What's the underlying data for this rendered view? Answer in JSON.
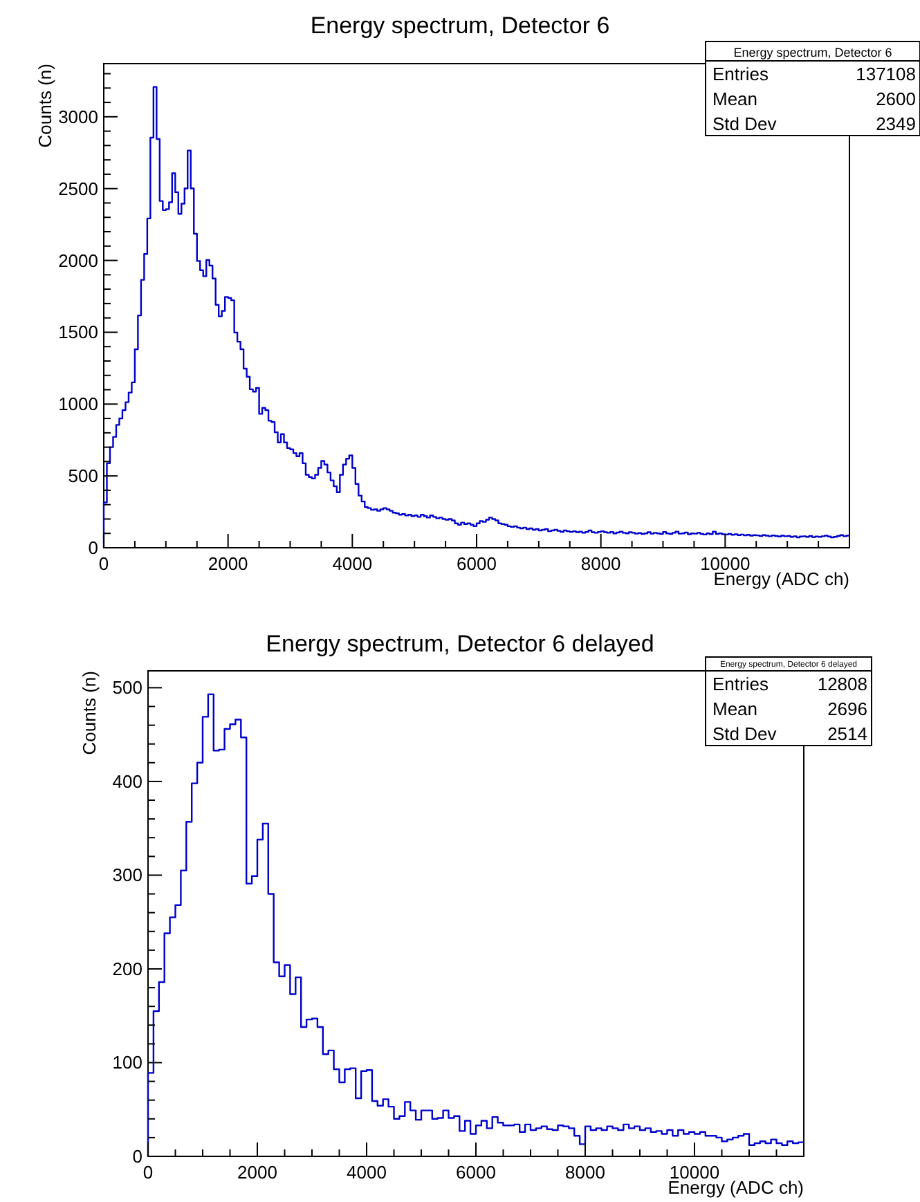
{
  "chart_data": [
    {
      "type": "histogram",
      "title": "Energy spectrum, Detector 6",
      "xlabel": "Energy (ADC ch)",
      "ylabel": "Counts (n)",
      "annotations": [
        "Energy spectrum, Detector 6",
        "Entries",
        "137108",
        "Mean",
        "2600",
        "Std Dev",
        "2349"
      ],
      "color": "#0000cc",
      "bins": [
        0,
        50,
        100,
        150,
        200,
        250,
        300,
        350,
        400,
        450,
        500,
        550,
        600,
        650,
        700,
        750,
        800,
        850,
        900,
        950,
        1000,
        1050,
        1100,
        1150,
        1200,
        1250,
        1300,
        1350,
        1400,
        1450,
        1500,
        1550,
        1600,
        1650,
        1700,
        1750,
        1800,
        1850,
        1900,
        1950,
        2000,
        2050,
        2100,
        2150,
        2200,
        2250,
        2300,
        2350,
        2400,
        2450,
        2500,
        2550,
        2600,
        2650,
        2700,
        2750,
        2800,
        2850,
        2900,
        2950,
        3000,
        3050,
        3100,
        3150,
        3200,
        3250,
        3300,
        3350,
        3400,
        3450,
        3500,
        3550,
        3600,
        3650,
        3700,
        3750,
        3800,
        3850,
        3900,
        3950,
        4000,
        4050,
        4100,
        4150,
        4200,
        4250,
        4300,
        4350,
        4400,
        4450,
        4500,
        4550,
        4600,
        4650,
        4700,
        4750,
        4800,
        4850,
        4900,
        4950,
        5000,
        5050,
        5100,
        5150,
        5200,
        5250,
        5300,
        5350,
        5400,
        5450,
        5500,
        5550,
        5600,
        5650,
        5700,
        5750,
        5800,
        5850,
        5900,
        5950,
        6000,
        6050,
        6100,
        6150,
        6200,
        6250,
        6300,
        6350,
        6400,
        6450,
        6500,
        6550,
        6600,
        6650,
        6700,
        6750,
        6800,
        6850,
        6900,
        6950,
        7000,
        7050,
        7100,
        7150,
        7200,
        7250,
        7300,
        7350,
        7400,
        7450,
        7500,
        7550,
        7600,
        7650,
        7700,
        7750,
        7800,
        7850,
        7900,
        7950,
        8000,
        8050,
        8100,
        8150,
        8200,
        8250,
        8300,
        8350,
        8400,
        8450,
        8500,
        8550,
        8600,
        8650,
        8700,
        8750,
        8800,
        8850,
        8900,
        8950,
        9000,
        9050,
        9100,
        9150,
        9200,
        9250,
        9300,
        9350,
        9400,
        9450,
        9500,
        9550,
        9600,
        9650,
        9700,
        9750,
        9800,
        9850,
        9900,
        9950,
        10000,
        10050,
        10100,
        10150,
        10200,
        10250,
        10300,
        10350,
        10400,
        10450,
        10500,
        10550,
        10600,
        10650,
        10700,
        10750,
        10800,
        10850,
        10900,
        10950,
        11000,
        11050,
        11100,
        11150,
        11200,
        11250,
        11300,
        11350,
        11400,
        11450,
        11500,
        11550,
        11600,
        11650,
        11700,
        11750,
        11800,
        11850,
        11900,
        11950,
        12000
      ],
      "values": [
        315,
        588,
        700,
        772,
        855,
        900,
        958,
        1013,
        1080,
        1151,
        1382,
        1617,
        1865,
        2045,
        2292,
        2855,
        3208,
        2845,
        2414,
        2350,
        2357,
        2405,
        2607,
        2475,
        2324,
        2395,
        2501,
        2765,
        2501,
        2186,
        1996,
        1932,
        1890,
        2003,
        1964,
        1874,
        1691,
        1611,
        1649,
        1746,
        1739,
        1723,
        1498,
        1434,
        1382,
        1247,
        1190,
        1103,
        1087,
        1112,
        932,
        974,
        958,
        884,
        875,
        804,
        733,
        791,
        733,
        694,
        685,
        659,
        637,
        659,
        588,
        508,
        492,
        482,
        508,
        556,
        604,
        579,
        524,
        469,
        428,
        386,
        508,
        579,
        620,
        643,
        556,
        444,
        363,
        322,
        283,
        276,
        264,
        267,
        257,
        267,
        276,
        267,
        257,
        244,
        240,
        230,
        235,
        225,
        230,
        220,
        225,
        215,
        230,
        220,
        210,
        225,
        215,
        205,
        210,
        200,
        195,
        200,
        190,
        170,
        160,
        175,
        165,
        170,
        160,
        150,
        170,
        185,
        180,
        195,
        210,
        200,
        190,
        170,
        165,
        160,
        150,
        145,
        150,
        140,
        135,
        140,
        130,
        135,
        125,
        130,
        120,
        125,
        130,
        115,
        120,
        125,
        118,
        110,
        120,
        115,
        110,
        115,
        108,
        112,
        105,
        110,
        120,
        108,
        104,
        110,
        115,
        108,
        104,
        110,
        100,
        106,
        112,
        104,
        100,
        108,
        104,
        98,
        102,
        96,
        100,
        108,
        98,
        104,
        100,
        96,
        110,
        100,
        96,
        104,
        112,
        98,
        100,
        106,
        94,
        100,
        98,
        104,
        96,
        92,
        100,
        95,
        112,
        96,
        100,
        94,
        92,
        96,
        90,
        94,
        88,
        92,
        86,
        90,
        84,
        88,
        86,
        82,
        88,
        84,
        80,
        86,
        82,
        78,
        84,
        80,
        82,
        76,
        80,
        72,
        78,
        80,
        76,
        82,
        74,
        78,
        76,
        80,
        84,
        78,
        72,
        76,
        82,
        88,
        80,
        84
      ],
      "xlim": [
        0,
        12000
      ],
      "xticks": [
        0,
        {
          "value": 500,
          "label": null
        },
        {
          "value": 1000,
          "label": null
        },
        {
          "value": 1500,
          "label": null
        },
        2000,
        {
          "value": 2500,
          "label": null
        },
        {
          "value": 3000,
          "label": null
        },
        {
          "value": 3500,
          "label": null
        },
        4000,
        {
          "value": 4500,
          "label": null
        },
        {
          "value": 5000,
          "label": null
        },
        {
          "value": 5500,
          "label": null
        },
        6000,
        {
          "value": 6500,
          "label": null
        },
        {
          "value": 7000,
          "label": null
        },
        {
          "value": 7500,
          "label": null
        },
        8000,
        {
          "value": 8500,
          "label": null
        },
        {
          "value": 9000,
          "label": null
        },
        {
          "value": 9500,
          "label": null
        },
        10000,
        {
          "value": 10500,
          "label": null
        },
        {
          "value": 11000,
          "label": null
        },
        {
          "value": 11500,
          "label": null
        }
      ],
      "ylim": [
        0,
        3370
      ],
      "yticks": [
        0,
        {
          "value": 100,
          "label": null
        },
        {
          "value": 200,
          "label": null
        },
        {
          "value": 300,
          "label": null
        },
        {
          "value": 400,
          "label": null
        },
        500,
        {
          "value": 600,
          "label": null
        },
        {
          "value": 700,
          "label": null
        },
        {
          "value": 800,
          "label": null
        },
        {
          "value": 900,
          "label": null
        },
        1000,
        {
          "value": 1100,
          "label": null
        },
        {
          "value": 1200,
          "label": null
        },
        {
          "value": 1300,
          "label": null
        },
        {
          "value": 1400,
          "label": null
        },
        1500,
        {
          "value": 1600,
          "label": null
        },
        {
          "value": 1700,
          "label": null
        },
        {
          "value": 1800,
          "label": null
        },
        {
          "value": 1900,
          "label": null
        },
        2000,
        {
          "value": 2100,
          "label": null
        },
        {
          "value": 2200,
          "label": null
        },
        {
          "value": 2300,
          "label": null
        },
        {
          "value": 2400,
          "label": null
        },
        2500,
        {
          "value": 2600,
          "label": null
        },
        {
          "value": 2700,
          "label": null
        },
        {
          "value": 2800,
          "label": null
        },
        {
          "value": 2900,
          "label": null
        },
        3000,
        {
          "value": 3100,
          "label": null
        },
        {
          "value": 3200,
          "label": null
        },
        {
          "value": 3300,
          "label": null
        }
      ]
    },
    {
      "type": "histogram",
      "title": "Energy spectrum, Detector 6 delayed",
      "xlabel": "Energy (ADC ch)",
      "ylabel": "Counts (n)",
      "annotations": [
        "Energy spectrum, Detector 6 delayed",
        "Entries",
        "12808",
        "Mean",
        "2696",
        "Std Dev",
        "2514"
      ],
      "color": "#0000cc",
      "bins": [
        0,
        100,
        200,
        300,
        400,
        500,
        600,
        700,
        800,
        900,
        1000,
        1100,
        1200,
        1300,
        1400,
        1500,
        1600,
        1700,
        1800,
        1900,
        2000,
        2100,
        2200,
        2300,
        2400,
        2500,
        2600,
        2700,
        2800,
        2900,
        3000,
        3100,
        3200,
        3300,
        3400,
        3500,
        3600,
        3700,
        3800,
        3900,
        4000,
        4100,
        4200,
        4300,
        4400,
        4500,
        4600,
        4700,
        4800,
        4900,
        5000,
        5100,
        5200,
        5300,
        5400,
        5500,
        5600,
        5700,
        5800,
        5900,
        6000,
        6100,
        6200,
        6300,
        6400,
        6500,
        6600,
        6700,
        6800,
        6900,
        7000,
        7100,
        7200,
        7300,
        7400,
        7500,
        7600,
        7700,
        7800,
        7900,
        8000,
        8100,
        8200,
        8300,
        8400,
        8500,
        8600,
        8700,
        8800,
        8900,
        9000,
        9100,
        9200,
        9300,
        9400,
        9500,
        9600,
        9700,
        9800,
        9900,
        10000,
        10100,
        10200,
        10300,
        10400,
        10500,
        10600,
        10700,
        10800,
        10900,
        11000,
        11100,
        11200,
        11300,
        11400,
        11500,
        11600,
        11700,
        11800,
        11900,
        12000
      ],
      "values": [
        89,
        155,
        186,
        238,
        255,
        268,
        305,
        357,
        398,
        420,
        469,
        493,
        433,
        434,
        456,
        461,
        466,
        447,
        291,
        299,
        338,
        355,
        280,
        207,
        192,
        204,
        173,
        191,
        138,
        146,
        147,
        138,
        109,
        113,
        93,
        79,
        93,
        94,
        62,
        91,
        92,
        59,
        54,
        61,
        53,
        40,
        43,
        58,
        49,
        39,
        49,
        49,
        40,
        41,
        49,
        41,
        43,
        27,
        38,
        24,
        33,
        38,
        30,
        42,
        36,
        33,
        33,
        34,
        26,
        34,
        28,
        30,
        32,
        29,
        28,
        33,
        32,
        30,
        22,
        13,
        32,
        28,
        30,
        28,
        32,
        30,
        28,
        34,
        30,
        32,
        28,
        30,
        26,
        27,
        24,
        28,
        22,
        28,
        24,
        26,
        24,
        26,
        22,
        22,
        20,
        16,
        18,
        20,
        22,
        24,
        12,
        14,
        16,
        14,
        18,
        14,
        12,
        16,
        14,
        15
      ],
      "xlim": [
        0,
        12000
      ],
      "xticks": [
        0,
        {
          "value": 500,
          "label": null
        },
        {
          "value": 1000,
          "label": null
        },
        {
          "value": 1500,
          "label": null
        },
        2000,
        {
          "value": 2500,
          "label": null
        },
        {
          "value": 3000,
          "label": null
        },
        {
          "value": 3500,
          "label": null
        },
        4000,
        {
          "value": 4500,
          "label": null
        },
        {
          "value": 5000,
          "label": null
        },
        {
          "value": 5500,
          "label": null
        },
        6000,
        {
          "value": 6500,
          "label": null
        },
        {
          "value": 7000,
          "label": null
        },
        {
          "value": 7500,
          "label": null
        },
        8000,
        {
          "value": 8500,
          "label": null
        },
        {
          "value": 9000,
          "label": null
        },
        {
          "value": 9500,
          "label": null
        },
        10000,
        {
          "value": 10500,
          "label": null
        },
        {
          "value": 11000,
          "label": null
        },
        {
          "value": 11500,
          "label": null
        }
      ],
      "ylim": [
        0,
        518
      ],
      "yticks": [
        0,
        {
          "value": 20,
          "label": null
        },
        {
          "value": 40,
          "label": null
        },
        {
          "value": 60,
          "label": null
        },
        {
          "value": 80,
          "label": null
        },
        100,
        {
          "value": 120,
          "label": null
        },
        {
          "value": 140,
          "label": null
        },
        {
          "value": 160,
          "label": null
        },
        {
          "value": 180,
          "label": null
        },
        200,
        {
          "value": 220,
          "label": null
        },
        {
          "value": 240,
          "label": null
        },
        {
          "value": 260,
          "label": null
        },
        {
          "value": 280,
          "label": null
        },
        300,
        {
          "value": 320,
          "label": null
        },
        {
          "value": 340,
          "label": null
        },
        {
          "value": 360,
          "label": null
        },
        {
          "value": 380,
          "label": null
        },
        400,
        {
          "value": 420,
          "label": null
        },
        {
          "value": 440,
          "label": null
        },
        {
          "value": 460,
          "label": null
        },
        {
          "value": 480,
          "label": null
        },
        500
      ]
    }
  ]
}
